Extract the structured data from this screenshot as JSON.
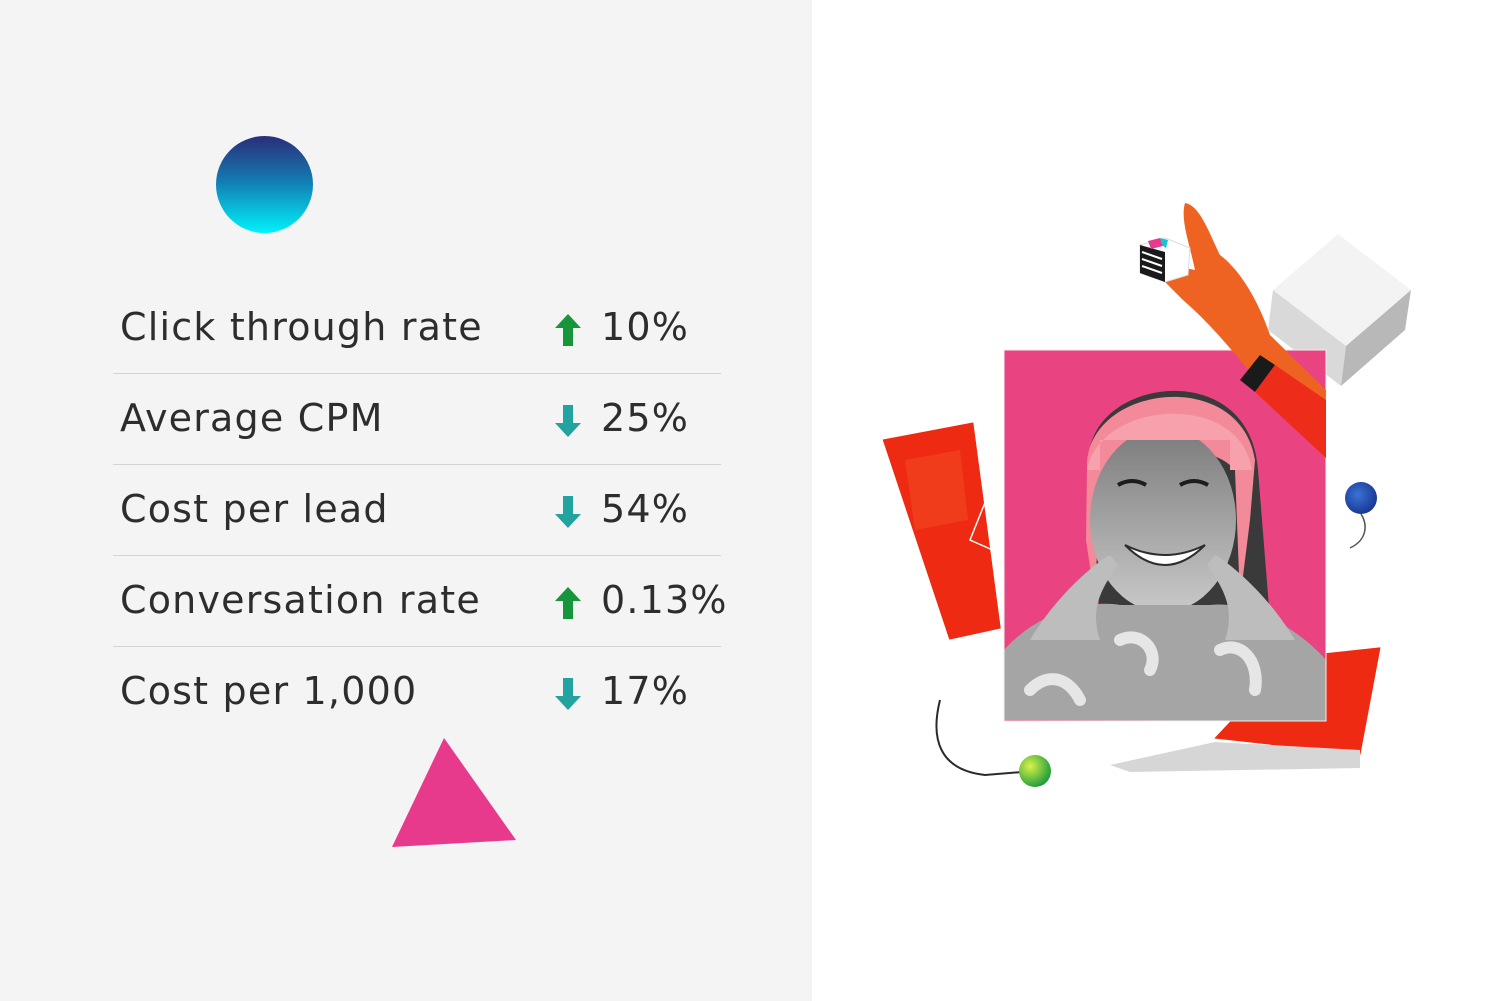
{
  "metrics": [
    {
      "label": "Click through rate",
      "direction": "up",
      "value": "10%"
    },
    {
      "label": "Average CPM",
      "direction": "down",
      "value": "25%"
    },
    {
      "label": "Cost per lead",
      "direction": "down",
      "value": "54%"
    },
    {
      "label": "Conversation rate",
      "direction": "up",
      "value": "0.13%"
    },
    {
      "label": "Cost per 1,000",
      "direction": "down",
      "value": "17%"
    }
  ],
  "colors": {
    "up_arrow": "#17953a",
    "down_arrow": "#23a3a0",
    "triangle": "#e73a8d",
    "photo_background": "#e94381",
    "card_red": "#ef2a12",
    "hand": "#ee6322"
  },
  "icons": {
    "up": "arrow-up-icon",
    "down": "arrow-down-icon"
  }
}
